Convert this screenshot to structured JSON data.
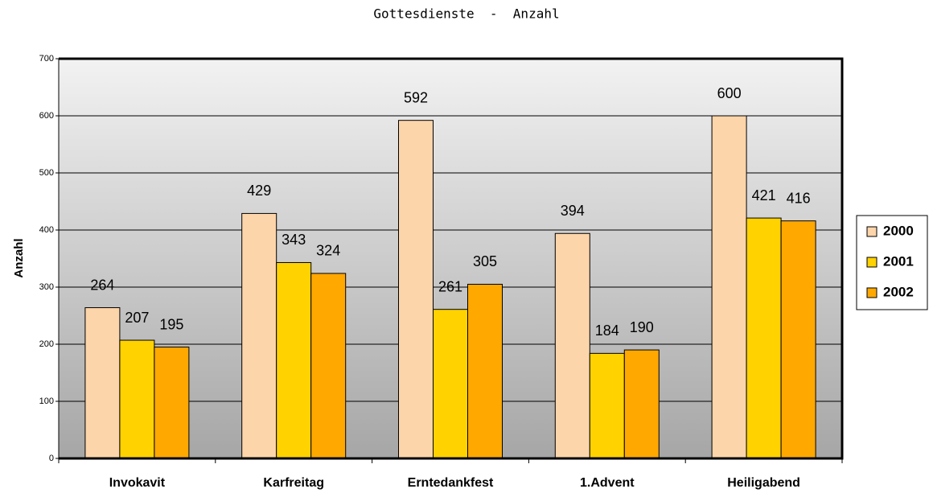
{
  "chart_data": {
    "type": "bar",
    "title": "Gottesdienste  -  Anzahl",
    "y_label": "Anzahl",
    "categories": [
      "Invokavit",
      "Karfreitag",
      "Erntedankfest",
      "1.Advent",
      "Heiligabend"
    ],
    "series": [
      {
        "name": "2000",
        "color": "#fdd5aa",
        "values": [
          264,
          429,
          592,
          394,
          600
        ]
      },
      {
        "name": "2001",
        "color": "#ffd200",
        "values": [
          207,
          343,
          261,
          184,
          421
        ]
      },
      {
        "name": "2002",
        "color": "#ffa800",
        "values": [
          195,
          324,
          305,
          190,
          416
        ]
      }
    ],
    "ylim": [
      0,
      700
    ],
    "yticks": [
      0,
      100,
      200,
      300,
      400,
      500,
      600,
      700
    ],
    "grid": true,
    "legend": "right"
  }
}
